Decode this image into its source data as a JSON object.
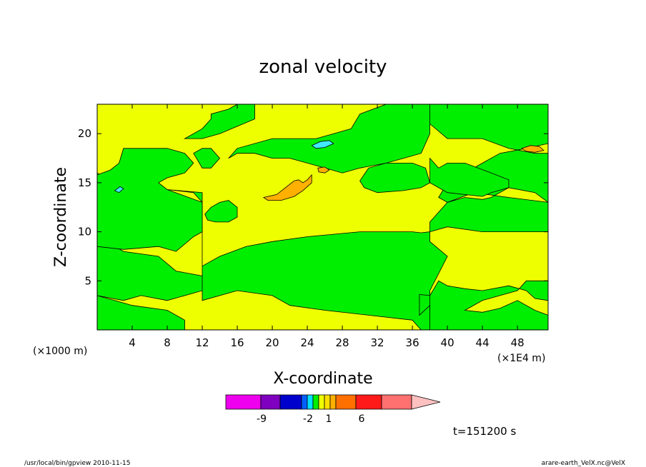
{
  "chart_data": {
    "type": "heatmap",
    "title": "zonal velocity",
    "xlabel": "X-coordinate",
    "ylabel": "Z-coordinate",
    "x_unit_left": "(×1000 m)",
    "x_unit_right": "(×1E4 m)",
    "xlim": [
      0,
      51.5
    ],
    "ylim": [
      0,
      23
    ],
    "x_ticks": [
      "4",
      "8",
      "12",
      "16",
      "20",
      "24",
      "28",
      "32",
      "36",
      "40",
      "44",
      "48"
    ],
    "x_tick_values": [
      4,
      8,
      12,
      16,
      20,
      24,
      28,
      32,
      36,
      40,
      44,
      48
    ],
    "y_ticks": [
      "5",
      "10",
      "15",
      "20"
    ],
    "y_tick_values": [
      5,
      10,
      15,
      20
    ],
    "time_label": "t=151200 s",
    "colors": {
      "yellow": "#eeff00",
      "green": "#00ee00",
      "orange": "#ffb000",
      "cyan": "#00e0ff",
      "cyan_light": "#40e8ff"
    },
    "colorbar": {
      "colors": [
        "#ee00ee",
        "#7f00bf",
        "#0000cc",
        "#0060ff",
        "#00e0ff",
        "#00ee00",
        "#eeff00",
        "#ffe000",
        "#ffb000",
        "#ff7000",
        "#ff1a1a",
        "#ff7070",
        "#ffc0c0"
      ],
      "labels": [
        "-9",
        "-2",
        "1",
        "6"
      ]
    },
    "regions": [
      {
        "value": "green",
        "color": "#00ee00",
        "polygon": [
          [
            0,
            0
          ],
          [
            10,
            0
          ],
          [
            10,
            1
          ],
          [
            8,
            2
          ],
          [
            4,
            2.5
          ],
          [
            2,
            3
          ],
          [
            0,
            3.5
          ]
        ]
      },
      {
        "value": "green",
        "color": "#00ee00",
        "polygon": [
          [
            0,
            15.8
          ],
          [
            3,
            14.5
          ],
          [
            8,
            14.3
          ],
          [
            11,
            14
          ],
          [
            12,
            13
          ],
          [
            12,
            3
          ],
          [
            16,
            4
          ],
          [
            20,
            3.5
          ],
          [
            22,
            2.5
          ],
          [
            26,
            2
          ],
          [
            36,
            1
          ],
          [
            37,
            0
          ],
          [
            39.5,
            0
          ],
          [
            38,
            2
          ],
          [
            38,
            4
          ],
          [
            40,
            7.5
          ],
          [
            38,
            9
          ],
          [
            38,
            10
          ],
          [
            37,
            9.9
          ],
          [
            36,
            10
          ],
          [
            30,
            10
          ],
          [
            24,
            9.5
          ],
          [
            20,
            9
          ],
          [
            17,
            8.5
          ],
          [
            14,
            7.5
          ],
          [
            12,
            6.5
          ],
          [
            12,
            4
          ],
          [
            8,
            3
          ],
          [
            5,
            3.5
          ],
          [
            3,
            3
          ],
          [
            0,
            3.5
          ],
          [
            0,
            8.5
          ],
          [
            1,
            9
          ],
          [
            3,
            8
          ],
          [
            7,
            7.5
          ],
          [
            9,
            6
          ],
          [
            12,
            5.5
          ],
          [
            12,
            9
          ],
          [
            12,
            14
          ],
          [
            8,
            14.3
          ],
          [
            5,
            14.8
          ],
          [
            2,
            15
          ],
          [
            0,
            16
          ]
        ]
      },
      {
        "value": "green",
        "color": "#00ee00",
        "polygon": [
          [
            0,
            8.5
          ],
          [
            0,
            15.8
          ],
          [
            1.5,
            16.3
          ],
          [
            2.5,
            17
          ],
          [
            3,
            18.5
          ],
          [
            8,
            18.5
          ],
          [
            10,
            18
          ],
          [
            11,
            17
          ],
          [
            10,
            16
          ],
          [
            8,
            15.5
          ],
          [
            7,
            15
          ],
          [
            8,
            14.3
          ],
          [
            12,
            13
          ],
          [
            12,
            10
          ],
          [
            11,
            9.5
          ],
          [
            9,
            8
          ],
          [
            7,
            8.5
          ],
          [
            3,
            8.2
          ]
        ]
      },
      {
        "value": "green",
        "color": "#00ee00",
        "polygon": [
          [
            10,
            19.5
          ],
          [
            12,
            20.5
          ],
          [
            13,
            21.5
          ],
          [
            13,
            22
          ],
          [
            15,
            22.5
          ],
          [
            16,
            23
          ],
          [
            18,
            23
          ],
          [
            18,
            21.5
          ],
          [
            14,
            20
          ],
          [
            12,
            19.5
          ]
        ]
      },
      {
        "value": "green",
        "color": "#00ee00",
        "polygon": [
          [
            38,
            23
          ],
          [
            38,
            21
          ],
          [
            40,
            19.5
          ],
          [
            44,
            19.5
          ],
          [
            47,
            18.5
          ],
          [
            50,
            18
          ],
          [
            51.5,
            18
          ],
          [
            51.5,
            13
          ],
          [
            47,
            13.5
          ],
          [
            43,
            14
          ],
          [
            40,
            13
          ],
          [
            38,
            11
          ],
          [
            38,
            10
          ],
          [
            40,
            10.5
          ],
          [
            44,
            10
          ],
          [
            48,
            10
          ],
          [
            51.5,
            10
          ],
          [
            51.5,
            13
          ],
          [
            50,
            14
          ],
          [
            47,
            14.5
          ],
          [
            45,
            13.5
          ],
          [
            44,
            13.3
          ],
          [
            42,
            13.5
          ],
          [
            40,
            13
          ],
          [
            39,
            13.5
          ],
          [
            40,
            15
          ],
          [
            42,
            16
          ],
          [
            44,
            17
          ],
          [
            46,
            18
          ],
          [
            49,
            18.5
          ],
          [
            51.5,
            19
          ],
          [
            51.5,
            23
          ]
        ]
      },
      {
        "value": "green",
        "color": "#00ee00",
        "polygon": [
          [
            38,
            17.5
          ],
          [
            39,
            16.5
          ],
          [
            40,
            17
          ],
          [
            42,
            17
          ],
          [
            45,
            16
          ],
          [
            47,
            15.3
          ],
          [
            47,
            14.5
          ],
          [
            45,
            14
          ],
          [
            44,
            13.6
          ],
          [
            40,
            14
          ],
          [
            38,
            15
          ]
        ]
      },
      {
        "value": "green",
        "color": "#00ee00",
        "polygon": [
          [
            15,
            17.5
          ],
          [
            16,
            18.5
          ],
          [
            20,
            19.5
          ],
          [
            25,
            19.5
          ],
          [
            27,
            20
          ],
          [
            29,
            20.5
          ],
          [
            30,
            22
          ],
          [
            33,
            23
          ],
          [
            38,
            23
          ],
          [
            38,
            20
          ],
          [
            37,
            18
          ],
          [
            35,
            17.5
          ],
          [
            33,
            17
          ],
          [
            30,
            16.5
          ],
          [
            28,
            16
          ],
          [
            26,
            16.5
          ],
          [
            24,
            17
          ],
          [
            22,
            17.5
          ],
          [
            20,
            17.5
          ],
          [
            18,
            18
          ],
          [
            16,
            18
          ]
        ]
      },
      {
        "value": "green",
        "color": "#00ee00",
        "polygon": [
          [
            11,
            18
          ],
          [
            12,
            16.5
          ],
          [
            13,
            16.5
          ],
          [
            14,
            17.5
          ],
          [
            13,
            18.5
          ],
          [
            12,
            18.5
          ]
        ]
      },
      {
        "value": "green",
        "color": "#00ee00",
        "polygon": [
          [
            30,
            15.2
          ],
          [
            31,
            16.5
          ],
          [
            33,
            17
          ],
          [
            36,
            17
          ],
          [
            37.5,
            16.5
          ],
          [
            38,
            15
          ],
          [
            37,
            14.5
          ],
          [
            35,
            14.2
          ],
          [
            32,
            14
          ],
          [
            30.5,
            14.5
          ]
        ]
      },
      {
        "value": "green",
        "color": "#00ee00",
        "polygon": [
          [
            12.3,
            11.8
          ],
          [
            13,
            12.5
          ],
          [
            14,
            13
          ],
          [
            15,
            13.2
          ],
          [
            16,
            12.5
          ],
          [
            16,
            11.5
          ],
          [
            15,
            11
          ],
          [
            13.5,
            11
          ],
          [
            12.6,
            11.2
          ]
        ]
      },
      {
        "value": "green",
        "color": "#00ee00",
        "polygon": [
          [
            38,
            0
          ],
          [
            51.5,
            0
          ],
          [
            51.5,
            1.5
          ],
          [
            50,
            2
          ],
          [
            48,
            3
          ],
          [
            46,
            2.2
          ],
          [
            44,
            1.8
          ],
          [
            42,
            2
          ],
          [
            44,
            3
          ],
          [
            46,
            3.5
          ],
          [
            48,
            4
          ],
          [
            49,
            5
          ],
          [
            50,
            5
          ],
          [
            51.5,
            5
          ],
          [
            51.5,
            3
          ],
          [
            50,
            3.2
          ],
          [
            49,
            4
          ],
          [
            47,
            4.5
          ],
          [
            44,
            4
          ],
          [
            42,
            4.2
          ],
          [
            40,
            4.5
          ],
          [
            39,
            5
          ],
          [
            38,
            3.5
          ],
          [
            38,
            2
          ]
        ]
      },
      {
        "value": "green",
        "color": "#00ee00",
        "polygon": [
          [
            36.8,
            1.5
          ],
          [
            38,
            2.5
          ],
          [
            38,
            3.5
          ],
          [
            36.8,
            3.6
          ]
        ]
      },
      {
        "value": "orange",
        "color": "#ffb000",
        "polygon": [
          [
            19,
            13.5
          ],
          [
            20.5,
            13.8
          ],
          [
            21.5,
            14.5
          ],
          [
            22.5,
            15.2
          ],
          [
            23,
            15.3
          ],
          [
            23.5,
            15
          ],
          [
            24,
            15.3
          ],
          [
            24.5,
            15.8
          ],
          [
            24.5,
            15
          ],
          [
            23.5,
            14.2
          ],
          [
            22.5,
            13.6
          ],
          [
            21,
            13.2
          ],
          [
            19.5,
            13.2
          ]
        ]
      },
      {
        "value": "orange",
        "color": "#ffb000",
        "polygon": [
          [
            25.2,
            16.5
          ],
          [
            26,
            16.6
          ],
          [
            26.5,
            16.3
          ],
          [
            26,
            16
          ],
          [
            25.3,
            16.1
          ]
        ]
      },
      {
        "value": "orange",
        "color": "#ffb000",
        "polygon": [
          [
            48.5,
            18.5
          ],
          [
            49.5,
            18.8
          ],
          [
            50.5,
            18.7
          ],
          [
            51,
            18.3
          ],
          [
            50,
            18.1
          ],
          [
            49,
            18.2
          ]
        ]
      },
      {
        "value": "cyan",
        "color": "#40e8ff",
        "polygon": [
          [
            24.5,
            18.8
          ],
          [
            25.5,
            19.2
          ],
          [
            26.5,
            19.3
          ],
          [
            27,
            19
          ],
          [
            26,
            18.6
          ],
          [
            25,
            18.5
          ]
        ]
      },
      {
        "value": "cyan",
        "color": "#40e8ff",
        "polygon": [
          [
            2,
            14.2
          ],
          [
            2.6,
            14.6
          ],
          [
            3,
            14.4
          ],
          [
            2.5,
            14
          ]
        ]
      }
    ]
  },
  "footer": {
    "left": "/usr/local/bin/gpview   2010-11-15",
    "right": "arare-earth_VelX.nc@VelX"
  }
}
